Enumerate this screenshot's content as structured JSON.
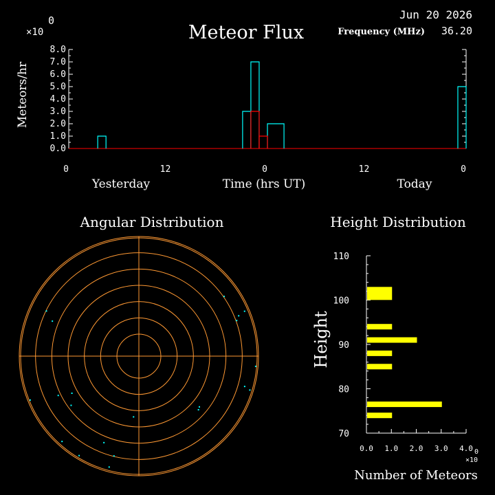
{
  "header": {
    "title": "Meteor Flux",
    "date": "Jun 20 2026",
    "frequency_label": "Frequency (MHz)",
    "frequency_value": "36.20",
    "multiplier": "×10",
    "exponent": "0"
  },
  "flux": {
    "ylabel": "Meteors/hr",
    "xlabel": "Time (hrs UT)",
    "day_left": "Yesterday",
    "day_right": "Today"
  },
  "angular": {
    "title": "Angular Distribution"
  },
  "height": {
    "title": "Height Distribution",
    "ylabel": "Height",
    "xlabel": "Number of Meteors",
    "multiplier": "×10",
    "exponent": "0"
  },
  "colors": {
    "cyan": "#00ffff",
    "red": "#ff0000",
    "orange": "#ff9933",
    "yellow": "#ffff00",
    "white": "#ffffff"
  },
  "chart_data": [
    {
      "type": "bar",
      "name": "meteor-flux",
      "x_ticks": [
        "0",
        "12",
        "0",
        "12",
        "0"
      ],
      "x_tick_hours": [
        0,
        12,
        24,
        36,
        48
      ],
      "y_ticks": [
        "0.0",
        "1.0",
        "2.0",
        "3.0",
        "4.0",
        "5.0",
        "6.0",
        "7.0",
        "8.0"
      ],
      "ylim": [
        0,
        8
      ],
      "xlim": [
        0,
        48
      ],
      "series": [
        {
          "color": "cyan",
          "bins": [
            [
              3.5,
              4.5,
              1
            ],
            [
              21,
              22,
              3
            ],
            [
              22,
              23,
              7
            ],
            [
              24,
              26,
              2
            ],
            [
              47,
              48,
              5
            ]
          ]
        },
        {
          "color": "red",
          "bins": [
            [
              22,
              23,
              3
            ],
            [
              23,
              24,
              1
            ]
          ]
        }
      ]
    },
    {
      "type": "scatter",
      "name": "angular-distribution",
      "rings": 7,
      "points": [
        [
          355,
          0.51
        ],
        [
          346,
          0.86
        ],
        [
          345,
          0.96
        ],
        [
          338,
          0.78
        ],
        [
          329,
          0.97
        ],
        [
          318,
          0.96
        ],
        [
          306,
          0.7
        ],
        [
          299,
          0.64
        ],
        [
          296,
          0.75
        ],
        [
          292,
          0.98
        ],
        [
          248,
          0.78
        ],
        [
          244,
          0.86
        ],
        [
          50,
          0.66
        ],
        [
          48,
          0.67
        ],
        [
          74,
          0.92
        ],
        [
          73,
          0.97
        ],
        [
          85,
          0.98
        ],
        [
          113,
          0.96
        ],
        [
          110,
          0.87
        ],
        [
          112,
          0.9
        ],
        [
          125,
          0.87
        ]
      ]
    },
    {
      "type": "bar",
      "name": "height-distribution",
      "orientation": "horizontal",
      "ylim": [
        70,
        110
      ],
      "xlim": [
        0,
        4
      ],
      "y_ticks": [
        "70",
        "80",
        "90",
        "100",
        "110"
      ],
      "x_ticks": [
        "0.0",
        "1.0",
        "2.0",
        "3.0",
        "4.0"
      ],
      "bars": [
        {
          "height": 74,
          "count": 1
        },
        {
          "height": 76.5,
          "count": 3
        },
        {
          "height": 85,
          "count": 1
        },
        {
          "height": 88,
          "count": 1
        },
        {
          "height": 91,
          "count": 2
        },
        {
          "height": 94,
          "count": 1
        },
        {
          "height": 101.5,
          "count": 1
        }
      ]
    }
  ]
}
